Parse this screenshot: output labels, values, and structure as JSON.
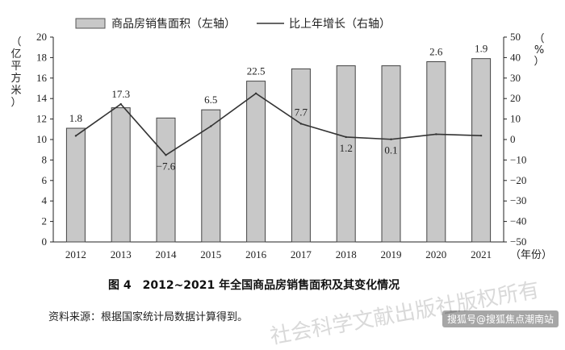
{
  "chart_data": {
    "type": "bar",
    "legend": {
      "bar_label": "商品房销售面积（左轴）",
      "line_label": "比上年增长（右轴）"
    },
    "categories": [
      "2012",
      "2013",
      "2014",
      "2015",
      "2016",
      "2017",
      "2018",
      "2019",
      "2020",
      "2021"
    ],
    "x_unit": "（年份）",
    "series": [
      {
        "name": "商品房销售面积（左轴）",
        "type": "bar",
        "axis": "left",
        "values": [
          11.1,
          13.1,
          12.1,
          12.9,
          15.7,
          16.9,
          17.2,
          17.2,
          17.6,
          17.9
        ],
        "color": "#c8c8c8"
      },
      {
        "name": "比上年增长（右轴）",
        "type": "line",
        "axis": "right",
        "values": [
          1.8,
          17.3,
          -7.6,
          6.5,
          22.5,
          7.7,
          1.2,
          0.1,
          2.6,
          1.9
        ],
        "labels": [
          "1.8",
          "17.3",
          "−7.6",
          "6.5",
          "22.5",
          "7.7",
          "1.2",
          "0.1",
          "2.6",
          "1.9"
        ],
        "color": "#333333"
      }
    ],
    "left_axis": {
      "label_chars": [
        "（",
        "亿",
        "平",
        "方",
        "米",
        "）"
      ],
      "ylim": [
        0,
        20
      ],
      "ticks": [
        "0",
        "2",
        "4",
        "6",
        "8",
        "10",
        "12",
        "14",
        "16",
        "18",
        "20"
      ]
    },
    "right_axis": {
      "label_chars": [
        "（",
        "%",
        "）"
      ],
      "ylim": [
        -50,
        50
      ],
      "ticks": [
        "−50",
        "−40",
        "−30",
        "−20",
        "−10",
        "0",
        "10",
        "20",
        "30",
        "40",
        "50"
      ]
    },
    "grid": false
  },
  "caption": "图 4　2012~2021 年全国商品房销售面积及其变化情况",
  "source": "资料来源：根据国家统计局数据计算得到。",
  "watermark": "社会科学文献出版社版权所有",
  "badge": "搜狐号@搜狐焦点潮南站"
}
